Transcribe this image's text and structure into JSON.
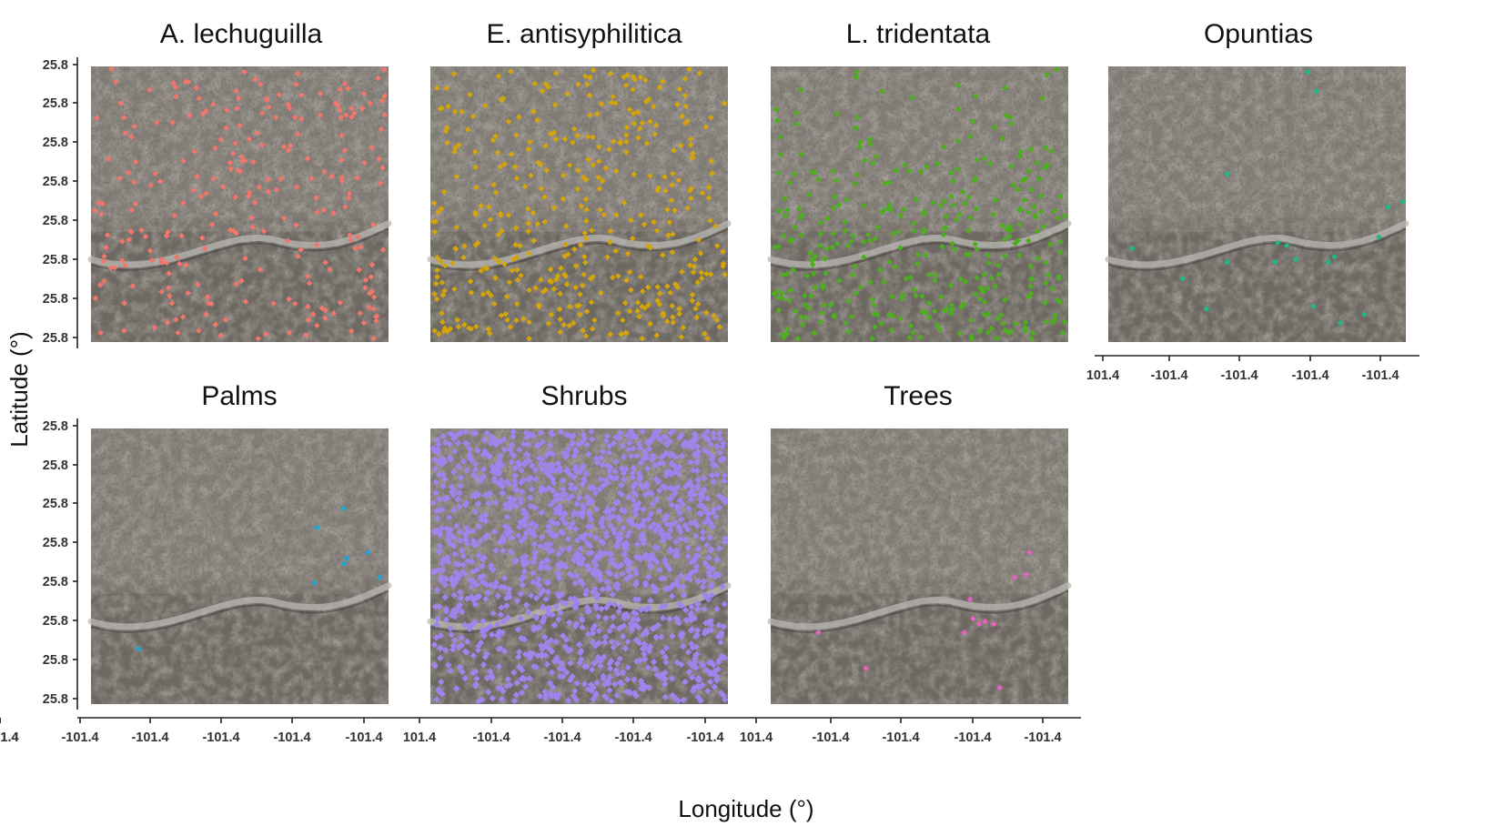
{
  "figure": {
    "xlabel": "Longitude (°)",
    "ylabel": "Latitude (°)"
  },
  "chart_data": [
    {
      "type": "scatter",
      "title": "A. lechuguilla",
      "color": "#f2766b",
      "xlabel": "Longitude (°)",
      "ylabel": "Latitude (°)",
      "y_tick_labels": [
        "25.8",
        "25.8",
        "25.8",
        "25.8",
        "25.8",
        "25.8",
        "25.8",
        "25.8"
      ],
      "x_tick_labels": [],
      "background": "aerial imagery",
      "point_count": 260,
      "band_weights": [
        1.0,
        1.0,
        1.0,
        1.0
      ],
      "seed": 11
    },
    {
      "type": "scatter",
      "title": "E. antisyphilitica",
      "color": "#d4a40a",
      "xlabel": "Longitude (°)",
      "ylabel": "Latitude (°)",
      "y_tick_labels": [],
      "x_tick_labels": [],
      "background": "aerial imagery",
      "point_count": 420,
      "band_weights": [
        0.8,
        1.0,
        1.0,
        1.4
      ],
      "seed": 23
    },
    {
      "type": "scatter",
      "title": "L. tridentata",
      "color": "#4caf1c",
      "xlabel": "Longitude (°)",
      "ylabel": "Latitude (°)",
      "y_tick_labels": [],
      "x_tick_labels": [],
      "background": "aerial imagery",
      "point_count": 360,
      "band_weights": [
        0.35,
        0.7,
        1.3,
        1.5
      ],
      "seed": 37
    },
    {
      "type": "scatter",
      "title": "Opuntias",
      "color": "#1dba8b",
      "xlabel": "Longitude (°)",
      "ylabel": "Latitude (°)",
      "y_tick_labels": [],
      "x_tick_labels": [
        "101.4",
        "-101.4",
        "-101.4",
        "-101.4",
        "-101.4"
      ],
      "background": "aerial imagery",
      "points": [
        [
          0.67,
          0.02
        ],
        [
          0.7,
          0.09
        ],
        [
          0.4,
          0.39
        ],
        [
          0.94,
          0.51
        ],
        [
          0.99,
          0.49
        ],
        [
          0.91,
          0.62
        ],
        [
          0.08,
          0.66
        ],
        [
          0.57,
          0.64
        ],
        [
          0.6,
          0.65
        ],
        [
          0.63,
          0.7
        ],
        [
          0.56,
          0.71
        ],
        [
          0.76,
          0.69
        ],
        [
          0.74,
          0.71
        ],
        [
          0.4,
          0.71
        ],
        [
          0.25,
          0.77
        ],
        [
          0.33,
          0.88
        ],
        [
          0.69,
          0.87
        ],
        [
          0.86,
          0.9
        ],
        [
          0.78,
          0.93
        ]
      ]
    },
    {
      "type": "scatter",
      "title": "Palms",
      "color": "#1aa7d6",
      "xlabel": "Longitude (°)",
      "ylabel": "Latitude (°)",
      "y_tick_labels": [
        "25.8",
        "25.8",
        "25.8",
        "25.8",
        "25.8",
        "25.8",
        "25.8",
        "25.8"
      ],
      "x_tick_labels": [
        "-101.4",
        "-101.4",
        "-101.4",
        "-101.4",
        "-101.4",
        "-101.4"
      ],
      "background": "aerial imagery",
      "points": [
        [
          0.85,
          0.29
        ],
        [
          0.76,
          0.36
        ],
        [
          0.86,
          0.47
        ],
        [
          0.85,
          0.49
        ],
        [
          0.93,
          0.45
        ],
        [
          0.97,
          0.54
        ],
        [
          0.75,
          0.56
        ],
        [
          0.16,
          0.8
        ]
      ]
    },
    {
      "type": "scatter",
      "title": "Shrubs",
      "color": "#a183ee",
      "xlabel": "Longitude (°)",
      "ylabel": "Latitude (°)",
      "y_tick_labels": [],
      "x_tick_labels": [
        "101.4",
        "-101.4",
        "-101.4",
        "-101.4",
        "-101.4"
      ],
      "background": "aerial imagery",
      "point_count": 1500,
      "band_weights": [
        1.3,
        1.1,
        0.95,
        0.9
      ],
      "seed": 51
    },
    {
      "type": "scatter",
      "title": "Trees",
      "color": "#ee5fc6",
      "xlabel": "Longitude (°)",
      "ylabel": "Latitude (°)",
      "y_tick_labels": [],
      "x_tick_labels": [
        "101.4",
        "-101.4",
        "-101.4",
        "-101.4",
        "-101.4",
        "-101.4"
      ],
      "background": "aerial imagery",
      "points": [
        [
          0.87,
          0.45
        ],
        [
          0.82,
          0.54
        ],
        [
          0.86,
          0.53
        ],
        [
          0.67,
          0.62
        ],
        [
          0.68,
          0.69
        ],
        [
          0.7,
          0.71
        ],
        [
          0.72,
          0.7
        ],
        [
          0.75,
          0.71
        ],
        [
          0.65,
          0.74
        ],
        [
          0.16,
          0.74
        ],
        [
          0.32,
          0.87
        ],
        [
          0.77,
          0.94
        ]
      ]
    }
  ]
}
